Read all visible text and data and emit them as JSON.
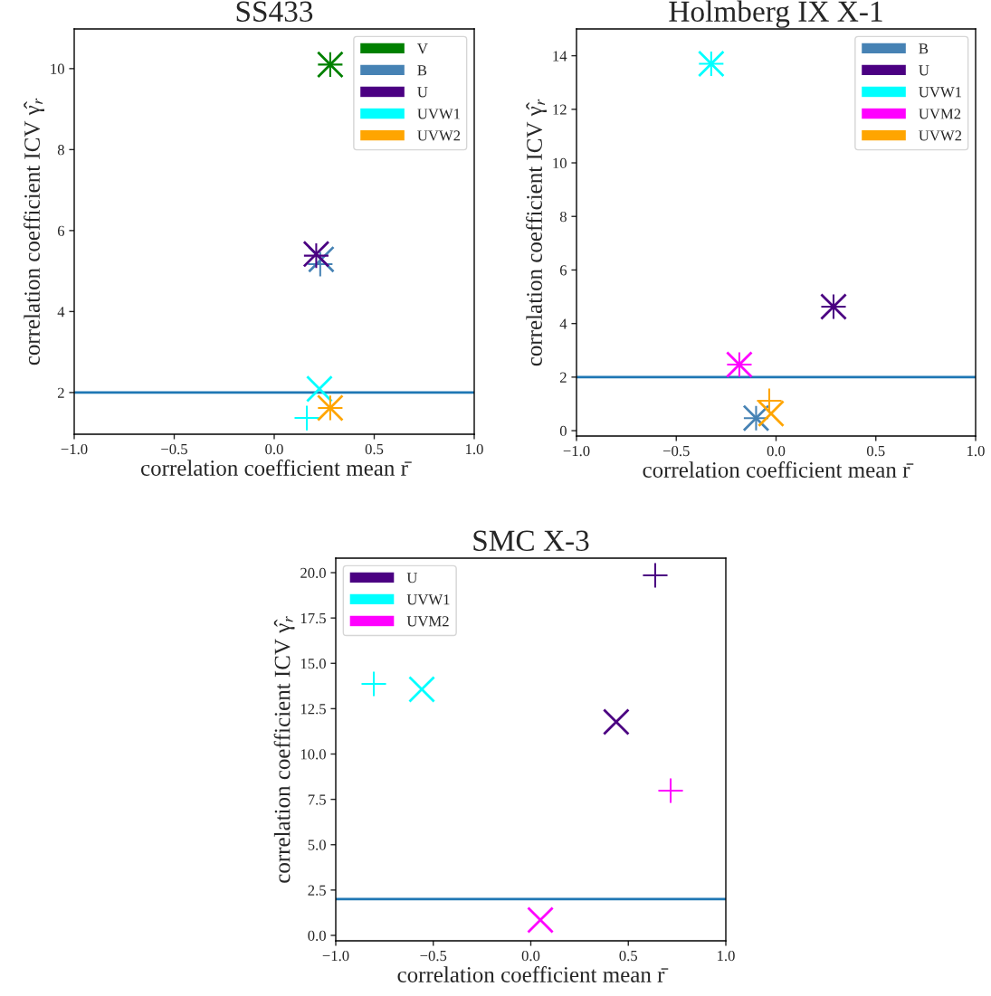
{
  "chart_data": [
    {
      "type": "scatter",
      "title": "SS433",
      "xlabel": "correlation coefficient mean r̄",
      "ylabel": "correlation coefficient ICV γ̂$_{r}$",
      "xlim": [
        -1.0,
        1.0
      ],
      "xticks": [
        {
          "value": -1.0,
          "label": "−1.0"
        },
        {
          "value": -0.5,
          "label": "−0.5"
        },
        {
          "value": 0.0,
          "label": "0.0"
        },
        {
          "value": 0.5,
          "label": "0.5"
        },
        {
          "value": 1.0,
          "label": "1.0"
        }
      ],
      "ylim": [
        0.97,
        10.98
      ],
      "yticks": [
        2,
        4,
        6,
        8,
        10
      ],
      "grid": false,
      "legend": "top right",
      "ref_lines": [
        {
          "axis": "y",
          "value": 2,
          "color": "#1f77b4"
        }
      ],
      "series": [
        {
          "name": "V",
          "color": "#008000",
          "x": [
            0.28
          ],
          "values": [
            10.1
          ]
        },
        {
          "color": "#008000",
          "marker": "cross",
          "x": [
            0.28
          ],
          "values": [
            10.1
          ]
        },
        {
          "name": "B",
          "color": "#4682b4",
          "x": [
            0.23
          ],
          "values": [
            5.17
          ]
        },
        {
          "color": "#4682b4",
          "marker": "cross",
          "x": [
            0.235
          ],
          "values": [
            5.29
          ]
        },
        {
          "name": "U",
          "color": "#4b0082",
          "x": [
            0.21
          ],
          "values": [
            5.38
          ]
        },
        {
          "color": "#4b0082",
          "marker": "cross",
          "x": [
            0.21
          ],
          "values": [
            5.42
          ]
        },
        {
          "name": "UVW1",
          "color": "#00ffff",
          "x": [
            0.163
          ],
          "values": [
            1.37
          ]
        },
        {
          "color": "#00ffff",
          "marker": "cross",
          "x": [
            0.226
          ],
          "values": [
            2.09
          ]
        },
        {
          "name": "UVW2",
          "color": "#ffa500",
          "x": [
            0.28
          ],
          "values": [
            1.62
          ]
        },
        {
          "color": "#ffa500",
          "marker": "cross",
          "x": [
            0.28
          ],
          "values": [
            1.62
          ]
        }
      ]
    },
    {
      "type": "scatter",
      "title": "Holmberg IX X-1",
      "xlabel": "correlation coefficient mean r̄",
      "ylabel": "correlation coefficient ICV γ̂$_{r}$",
      "xlim": [
        -1.0,
        1.0
      ],
      "xticks": [
        {
          "value": -1.0,
          "label": "−1.0"
        },
        {
          "value": -0.5,
          "label": "−0.5"
        },
        {
          "value": 0.0,
          "label": "0.0"
        },
        {
          "value": 0.5,
          "label": "0.5"
        },
        {
          "value": 1.0,
          "label": "1.0"
        }
      ],
      "ylim": [
        -0.2,
        15.0
      ],
      "yticks": [
        0,
        2,
        4,
        6,
        8,
        10,
        12,
        14
      ],
      "grid": false,
      "legend": "top right",
      "ref_lines": [
        {
          "axis": "y",
          "value": 2,
          "color": "#1f77b4"
        }
      ],
      "series": [
        {
          "name": "B",
          "color": "#4682b4",
          "x": [
            -0.1
          ],
          "values": [
            0.47
          ]
        },
        {
          "color": "#4682b4",
          "marker": "cross",
          "x": [
            -0.1
          ],
          "values": [
            0.47
          ]
        },
        {
          "name": "U",
          "color": "#4b0082",
          "x": [
            0.288
          ],
          "values": [
            4.63
          ]
        },
        {
          "color": "#4b0082",
          "marker": "cross",
          "x": [
            0.288
          ],
          "values": [
            4.63
          ]
        },
        {
          "name": "UVW1",
          "color": "#00ffff",
          "x": [
            -0.325
          ],
          "values": [
            13.7
          ]
        },
        {
          "color": "#00ffff",
          "marker": "cross",
          "x": [
            -0.325
          ],
          "values": [
            13.7
          ]
        },
        {
          "name": "UVM2",
          "color": "#ff00ff",
          "x": [
            -0.184
          ],
          "values": [
            2.47
          ]
        },
        {
          "color": "#ff00ff",
          "marker": "cross",
          "x": [
            -0.184
          ],
          "values": [
            2.47
          ]
        },
        {
          "name": "UVW2",
          "color": "#ffa500",
          "x": [
            -0.034
          ],
          "values": [
            1.12
          ]
        },
        {
          "color": "#ffa500",
          "marker": "cross",
          "x": [
            -0.025
          ],
          "values": [
            0.64
          ]
        }
      ]
    },
    {
      "type": "scatter",
      "title": "SMC X-3",
      "xlabel": "correlation coefficient mean r̄",
      "ylabel": "correlation coefficient ICV γ̂$_{r}$",
      "xlim": [
        -1.0,
        1.0
      ],
      "xticks": [
        {
          "value": -1.0,
          "label": "−1.0"
        },
        {
          "value": -0.5,
          "label": "−0.5"
        },
        {
          "value": 0.0,
          "label": "0.0"
        },
        {
          "value": 0.5,
          "label": "0.5"
        },
        {
          "value": 1.0,
          "label": "1.0"
        }
      ],
      "ylim": [
        -0.3,
        20.8
      ],
      "yticks": [
        {
          "value": 0,
          "label": "0.0"
        },
        2.5,
        {
          "value": 5,
          "label": "5.0"
        },
        7.5,
        {
          "value": 10,
          "label": "10.0"
        },
        12.5,
        {
          "value": 15,
          "label": "15.0"
        },
        17.5,
        {
          "value": 20,
          "label": "20.0"
        }
      ],
      "grid": false,
      "legend": "top left",
      "ref_lines": [
        {
          "axis": "y",
          "value": 2,
          "color": "#1f77b4"
        }
      ],
      "series": [
        {
          "name": "U",
          "color": "#4b0082",
          "x": [
            0.638
          ],
          "values": [
            19.85
          ]
        },
        {
          "color": "#4b0082",
          "marker": "cross",
          "x": [
            0.438
          ],
          "values": [
            11.77
          ]
        },
        {
          "name": "UVW1",
          "color": "#00ffff",
          "x": [
            -0.805
          ],
          "values": [
            13.87
          ]
        },
        {
          "color": "#00ffff",
          "marker": "cross",
          "x": [
            -0.559
          ],
          "values": [
            13.57
          ]
        },
        {
          "name": "UVM2",
          "color": "#ff00ff",
          "x": [
            0.717
          ],
          "values": [
            7.98
          ]
        },
        {
          "color": "#ff00ff",
          "marker": "cross",
          "x": [
            0.049
          ],
          "values": [
            0.85
          ]
        }
      ]
    }
  ]
}
